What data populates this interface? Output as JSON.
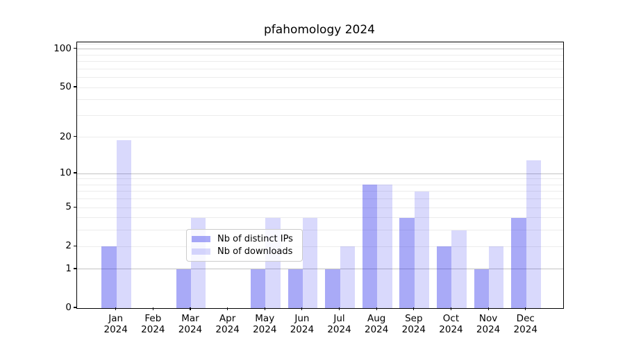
{
  "title": "pfahomology 2024",
  "chart_data": {
    "type": "bar",
    "title": "pfahomology 2024",
    "x_categories": [
      {
        "month": "Jan",
        "year": "2024"
      },
      {
        "month": "Feb",
        "year": "2024"
      },
      {
        "month": "Mar",
        "year": "2024"
      },
      {
        "month": "Apr",
        "year": "2024"
      },
      {
        "month": "May",
        "year": "2024"
      },
      {
        "month": "Jun",
        "year": "2024"
      },
      {
        "month": "Jul",
        "year": "2024"
      },
      {
        "month": "Aug",
        "year": "2024"
      },
      {
        "month": "Sep",
        "year": "2024"
      },
      {
        "month": "Oct",
        "year": "2024"
      },
      {
        "month": "Nov",
        "year": "2024"
      },
      {
        "month": "Dec",
        "year": "2024"
      }
    ],
    "series": [
      {
        "name": "Nb of distinct IPs",
        "color": "rgba(30,32,235,0.38)",
        "solid_color_hex": "#aaabf3",
        "values": [
          2,
          0,
          1,
          0,
          1,
          1,
          1,
          8,
          4,
          2,
          1,
          4
        ]
      },
      {
        "name": "Nb of downloads",
        "color": "rgba(30,32,235,0.17)",
        "solid_color_hex": "#d8d9f8",
        "values": [
          19,
          0,
          4,
          0,
          4,
          4,
          2,
          8,
          7,
          3,
          2,
          13
        ]
      }
    ],
    "y_axis": {
      "scale": "log1p",
      "lim": [
        0,
        113
      ],
      "labeled_ticks": [
        0,
        1,
        2,
        5,
        10,
        20,
        50,
        100
      ],
      "major_gridlines": [
        1,
        10,
        100
      ],
      "minor_gridlines": [
        2,
        3,
        4,
        5,
        6,
        7,
        8,
        9,
        20,
        30,
        40,
        50,
        60,
        70,
        80,
        90,
        110
      ],
      "major_grid_color": "#c2c2c2",
      "minor_grid_color": "#ececec"
    },
    "legend": {
      "items": [
        {
          "label": "Nb of distinct IPs",
          "color": "rgba(30,32,235,0.38)"
        },
        {
          "label": "Nb of downloads",
          "color": "rgba(30,32,235,0.17)"
        }
      ],
      "position": "inside-bottom-center"
    },
    "grid": true
  }
}
